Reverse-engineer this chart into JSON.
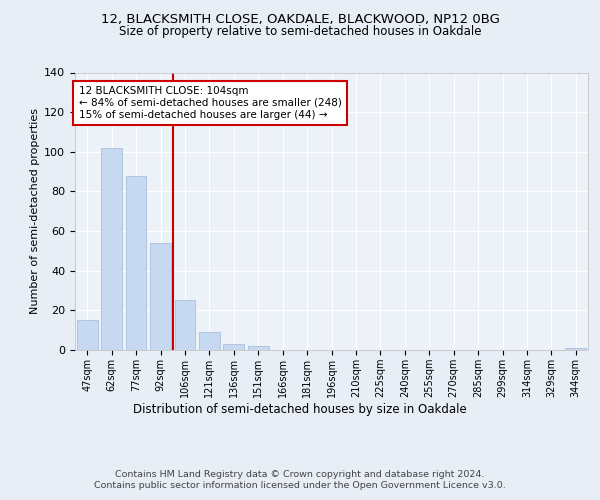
{
  "title1": "12, BLACKSMITH CLOSE, OAKDALE, BLACKWOOD, NP12 0BG",
  "title2": "Size of property relative to semi-detached houses in Oakdale",
  "xlabel": "Distribution of semi-detached houses by size in Oakdale",
  "ylabel": "Number of semi-detached properties",
  "categories": [
    "47sqm",
    "62sqm",
    "77sqm",
    "92sqm",
    "106sqm",
    "121sqm",
    "136sqm",
    "151sqm",
    "166sqm",
    "181sqm",
    "196sqm",
    "210sqm",
    "225sqm",
    "240sqm",
    "255sqm",
    "270sqm",
    "285sqm",
    "299sqm",
    "314sqm",
    "329sqm",
    "344sqm"
  ],
  "values": [
    15,
    102,
    88,
    54,
    25,
    9,
    3,
    2,
    0,
    0,
    0,
    0,
    0,
    0,
    0,
    0,
    0,
    0,
    0,
    0,
    1
  ],
  "bar_color": "#c6d9f0",
  "bar_edge_color": "#a0b8d8",
  "vline_x": 3.5,
  "vline_color": "#cc0000",
  "annotation_lines": [
    "12 BLACKSMITH CLOSE: 104sqm",
    "← 84% of semi-detached houses are smaller (248)",
    "15% of semi-detached houses are larger (44) →"
  ],
  "box_color": "#cc0000",
  "ylim": [
    0,
    140
  ],
  "yticks": [
    0,
    20,
    40,
    60,
    80,
    100,
    120,
    140
  ],
  "footnote1": "Contains HM Land Registry data © Crown copyright and database right 2024.",
  "footnote2": "Contains public sector information licensed under the Open Government Licence v3.0.",
  "bg_color": "#e8eef5",
  "plot_bg_color": "#edf2f8"
}
